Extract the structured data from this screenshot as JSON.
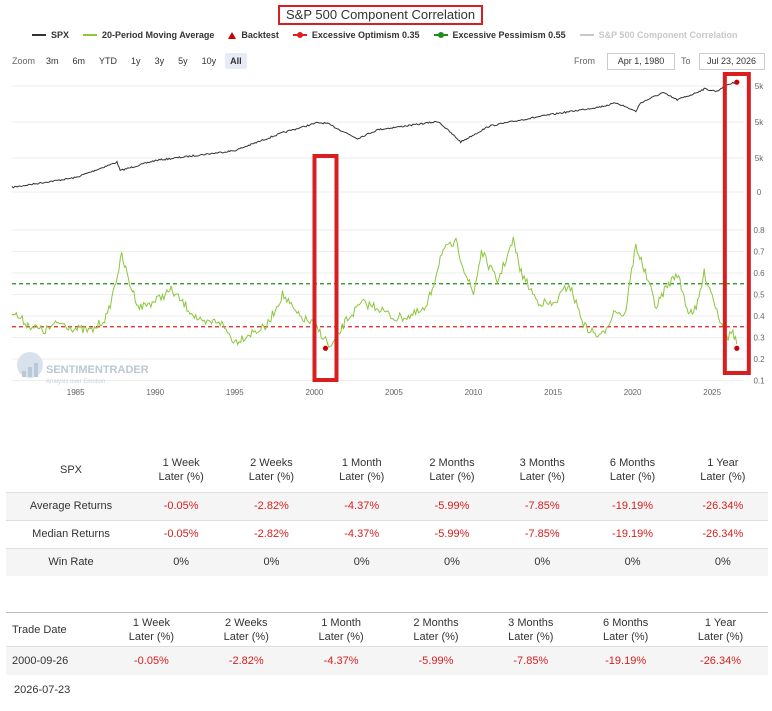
{
  "chart_data": {
    "type": "line",
    "title": "S&P 500 Component Correlation",
    "legend": [
      {
        "label": "SPX",
        "color": "#333333",
        "kind": "line"
      },
      {
        "label": "20-Period Moving Average",
        "color": "#8dc63f",
        "kind": "line"
      },
      {
        "label": "Backtest",
        "color": "#cc0000",
        "kind": "triangle"
      },
      {
        "label": "Excessive Optimism 0.35",
        "color": "#e02020",
        "kind": "dashed"
      },
      {
        "label": "Excessive Pessimism 0.55",
        "color": "#1e8c1e",
        "kind": "dashed"
      },
      {
        "label": "S&P 500 Component Correlation",
        "color": "#c8c8c8",
        "kind": "line",
        "dim": true
      }
    ],
    "x_ticks": [
      "1985",
      "1990",
      "1995",
      "2000",
      "2005",
      "2010",
      "2015",
      "2020",
      "2025"
    ],
    "x_range": [
      1981.0,
      2027.0
    ],
    "upper_axis_labels": [
      "5k",
      "5k",
      "5k",
      "0"
    ],
    "lower_axis": {
      "range": [
        0.07,
        0.93
      ],
      "ticks": [
        "0.8",
        "0.7",
        "0.6",
        "0.5",
        "0.4",
        "0.3",
        "0.2",
        "0.1"
      ]
    },
    "spx_series": [
      [
        1981.0,
        120
      ],
      [
        1985,
        175
      ],
      [
        1987.6,
        320
      ],
      [
        1987.8,
        230
      ],
      [
        1990,
        340
      ],
      [
        1995,
        500
      ],
      [
        1998,
        1000
      ],
      [
        2000.2,
        1480
      ],
      [
        2000.8,
        1440
      ],
      [
        2002.7,
        800
      ],
      [
        2004,
        1130
      ],
      [
        2007.8,
        1550
      ],
      [
        2009.2,
        700
      ],
      [
        2011,
        1300
      ],
      [
        2013,
        1650
      ],
      [
        2015,
        2060
      ],
      [
        2018,
        2750
      ],
      [
        2019,
        3200
      ],
      [
        2020.2,
        2300
      ],
      [
        2020.5,
        3200
      ],
      [
        2021.9,
        4750
      ],
      [
        2022.8,
        3600
      ],
      [
        2023.8,
        4500
      ],
      [
        2024.5,
        5500
      ],
      [
        2025.3,
        5000
      ],
      [
        2025.8,
        6300
      ],
      [
        2026.2,
        6800
      ],
      [
        2026.55,
        7150
      ]
    ],
    "correlation_ma": [
      [
        1981.0,
        0.42
      ],
      [
        1982,
        0.36
      ],
      [
        1983,
        0.33
      ],
      [
        1984,
        0.37
      ],
      [
        1985,
        0.34
      ],
      [
        1986,
        0.33
      ],
      [
        1987,
        0.4
      ],
      [
        1987.9,
        0.68
      ],
      [
        1988.4,
        0.55
      ],
      [
        1989,
        0.44
      ],
      [
        1990,
        0.47
      ],
      [
        1991,
        0.52
      ],
      [
        1992,
        0.44
      ],
      [
        1993,
        0.36
      ],
      [
        1994,
        0.38
      ],
      [
        1995,
        0.28
      ],
      [
        1996,
        0.32
      ],
      [
        1997,
        0.35
      ],
      [
        1998,
        0.5
      ],
      [
        1999,
        0.4
      ],
      [
        2000,
        0.36
      ],
      [
        2000.7,
        0.29
      ],
      [
        2001,
        0.25
      ],
      [
        2001.5,
        0.31
      ],
      [
        2002,
        0.38
      ],
      [
        2003,
        0.46
      ],
      [
        2004,
        0.44
      ],
      [
        2005,
        0.39
      ],
      [
        2006,
        0.4
      ],
      [
        2007,
        0.43
      ],
      [
        2007.5,
        0.55
      ],
      [
        2008,
        0.7
      ],
      [
        2008.9,
        0.74
      ],
      [
        2009.5,
        0.6
      ],
      [
        2010,
        0.5
      ],
      [
        2010.5,
        0.7
      ],
      [
        2011.5,
        0.56
      ],
      [
        2012.5,
        0.75
      ],
      [
        2013,
        0.6
      ],
      [
        2014,
        0.47
      ],
      [
        2015,
        0.45
      ],
      [
        2016,
        0.55
      ],
      [
        2017,
        0.35
      ],
      [
        2018,
        0.3
      ],
      [
        2018.9,
        0.43
      ],
      [
        2019.5,
        0.4
      ],
      [
        2020.2,
        0.73
      ],
      [
        2020.8,
        0.6
      ],
      [
        2021.5,
        0.44
      ],
      [
        2022,
        0.52
      ],
      [
        2022.8,
        0.6
      ],
      [
        2023.5,
        0.42
      ],
      [
        2024,
        0.43
      ],
      [
        2024.5,
        0.6
      ],
      [
        2025,
        0.5
      ],
      [
        2025.4,
        0.4
      ],
      [
        2025.7,
        0.36
      ],
      [
        2026.0,
        0.3
      ],
      [
        2026.3,
        0.33
      ],
      [
        2026.55,
        0.27
      ]
    ],
    "excessive_optimism": 0.35,
    "excessive_pessimism": 0.55,
    "backtest_points": [
      {
        "date": 2000.7,
        "value": 0.25
      },
      {
        "date": 2026.55,
        "value": 0.25
      }
    ],
    "watermark": "SENTIMENTRADER",
    "watermark_sub": "Analysis over Emotion"
  },
  "controls": {
    "zoom_label": "Zoom",
    "zoom_buttons": [
      "3m",
      "6m",
      "YTD",
      "1y",
      "3y",
      "5y",
      "10y",
      "All"
    ],
    "active_zoom": "All",
    "from_label": "From",
    "from_value": "Apr 1, 1980",
    "to_label": "To",
    "to_value": "Jul 23, 2026"
  },
  "stats_table": {
    "corner": "SPX",
    "headers": [
      "1 Week\nLater (%)",
      "2 Weeks\nLater (%)",
      "1 Month\nLater (%)",
      "2 Months\nLater (%)",
      "3 Months\nLater (%)",
      "6 Months\nLater (%)",
      "1 Year\nLater (%)"
    ],
    "rows": [
      {
        "label": "Average Returns",
        "values": [
          "-0.05%",
          "-2.82%",
          "-4.37%",
          "-5.99%",
          "-7.85%",
          "-19.19%",
          "-26.34%"
        ]
      },
      {
        "label": "Median Returns",
        "values": [
          "-0.05%",
          "-2.82%",
          "-4.37%",
          "-5.99%",
          "-7.85%",
          "-19.19%",
          "-26.34%"
        ]
      },
      {
        "label": "Win Rate",
        "values": [
          "0%",
          "0%",
          "0%",
          "0%",
          "0%",
          "0%",
          "0%"
        ]
      }
    ]
  },
  "trades_table": {
    "corner": "Trade Date",
    "headers": [
      "1 Week\nLater (%)",
      "2 Weeks\nLater (%)",
      "1 Month\nLater (%)",
      "2 Months\nLater (%)",
      "3 Months\nLater (%)",
      "6 Months\nLater (%)",
      "1 Year\nLater (%)"
    ],
    "rows": [
      {
        "date": "2000-09-26",
        "values": [
          "-0.05%",
          "-2.82%",
          "-4.37%",
          "-5.99%",
          "-7.85%",
          "-19.19%",
          "-26.34%"
        ]
      }
    ],
    "pending_date": "2026-07-23"
  }
}
